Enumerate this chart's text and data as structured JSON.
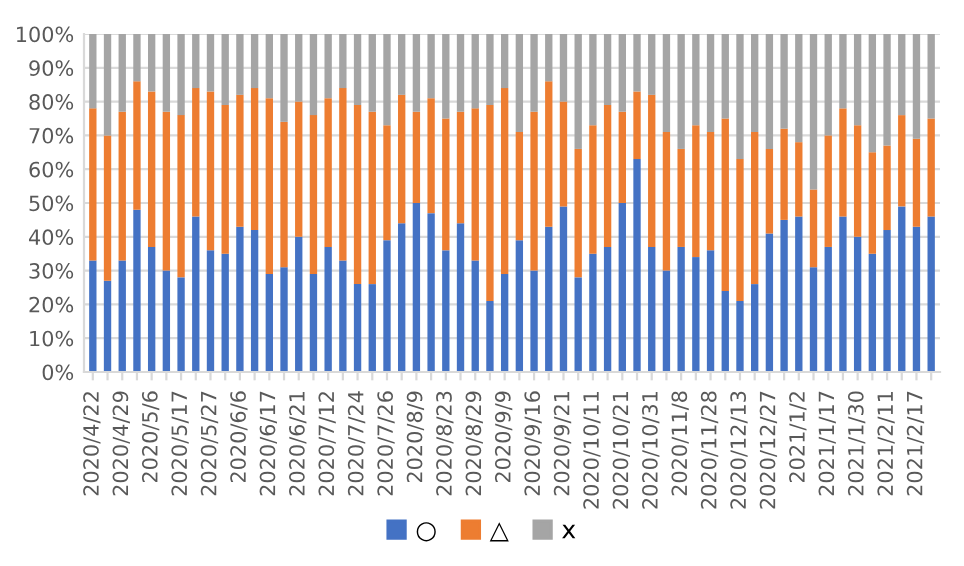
{
  "chart_data": {
    "type": "bar",
    "stacked": true,
    "categories": [
      "2020/4/22",
      null,
      "2020/4/29",
      null,
      "2020/5/6",
      null,
      "2020/5/17",
      null,
      "2020/5/27",
      null,
      "2020/6/6",
      null,
      "2020/6/17",
      null,
      "2020/6/21",
      null,
      "2020/7/12",
      null,
      "2020/7/24",
      null,
      "2020/7/26",
      null,
      "2020/8/9",
      null,
      "2020/8/23",
      null,
      "2020/8/29",
      null,
      "2020/9/9",
      null,
      "2020/9/16",
      null,
      "2020/9/21",
      null,
      "2020/10/11",
      null,
      "2020/10/21",
      null,
      "2020/10/31",
      null,
      "2020/11/8",
      null,
      "2020/11/28",
      null,
      "2020/12/13",
      null,
      "2020/12/27",
      null,
      "2021/1/2",
      null,
      "2021/1/17",
      null,
      "2021/1/30",
      null,
      "2021/2/11",
      null,
      "2021/2/17",
      null
    ],
    "series": [
      {
        "name": "○",
        "color": "#4472c4",
        "values": [
          33,
          27,
          33,
          48,
          37,
          30,
          28,
          46,
          36,
          35,
          43,
          42,
          29,
          31,
          40,
          29,
          37,
          33,
          26,
          26,
          39,
          44,
          50,
          47,
          36,
          44,
          33,
          21,
          29,
          39,
          30,
          43,
          49,
          28,
          35,
          37,
          50,
          63,
          37,
          30,
          37,
          34,
          36,
          24,
          21,
          26,
          41,
          45,
          46,
          31,
          37,
          46,
          40,
          35,
          42,
          49,
          43,
          46
        ]
      },
      {
        "name": "△",
        "color": "#ed7d31",
        "values": [
          45,
          43,
          44,
          38,
          46,
          47,
          48,
          38,
          47,
          44,
          39,
          42,
          52,
          43,
          40,
          47,
          44,
          51,
          53,
          51,
          34,
          38,
          27,
          34,
          39,
          33,
          45,
          58,
          55,
          32,
          47,
          43,
          31,
          38,
          38,
          42,
          27,
          20,
          45,
          41,
          29,
          39,
          35,
          51,
          42,
          45,
          25,
          27,
          22,
          23,
          33,
          32,
          33,
          30,
          25,
          27,
          26,
          29
        ]
      },
      {
        "name": "x",
        "color": "#a5a5a5",
        "values": [
          22,
          30,
          23,
          14,
          17,
          23,
          24,
          16,
          17,
          21,
          18,
          16,
          19,
          26,
          20,
          24,
          19,
          16,
          21,
          23,
          27,
          18,
          23,
          19,
          25,
          23,
          22,
          21,
          16,
          29,
          23,
          14,
          20,
          34,
          27,
          21,
          23,
          17,
          18,
          29,
          34,
          27,
          29,
          25,
          37,
          29,
          34,
          28,
          32,
          46,
          30,
          22,
          27,
          35,
          33,
          24,
          31,
          25
        ]
      }
    ],
    "ylim": [
      0,
      100
    ],
    "yticks": [
      {
        "value": 0,
        "label": "0%"
      },
      {
        "value": 10,
        "label": "10%"
      },
      {
        "value": 20,
        "label": "20%"
      },
      {
        "value": 30,
        "label": "30%"
      },
      {
        "value": 40,
        "label": "40%"
      },
      {
        "value": 50,
        "label": "50%"
      },
      {
        "value": 60,
        "label": "60%"
      },
      {
        "value": 70,
        "label": "70%"
      },
      {
        "value": 80,
        "label": "80%"
      },
      {
        "value": 90,
        "label": "90%"
      },
      {
        "value": 100,
        "label": "100%"
      }
    ],
    "grid": "y",
    "legend": "bottom"
  }
}
